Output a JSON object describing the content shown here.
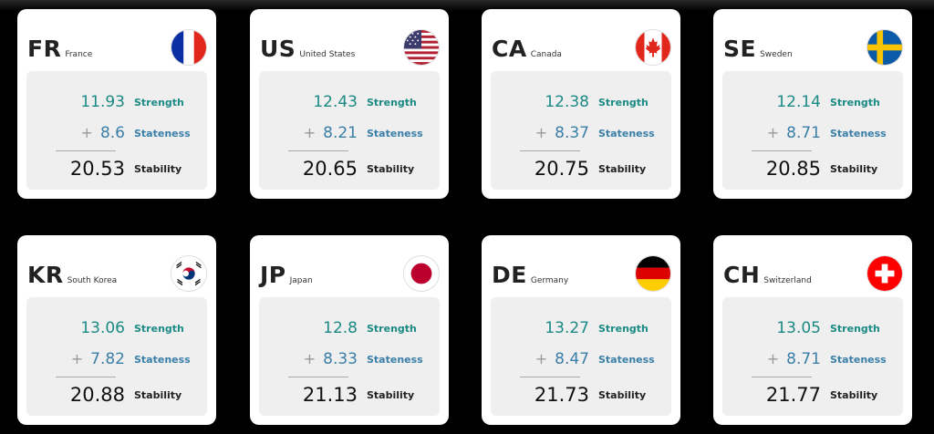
{
  "cards": [
    {
      "code": "FR",
      "country": "France",
      "flag": "flag-france-icon",
      "strength": "11.93",
      "stateness": "8.6",
      "stability": "20.53"
    },
    {
      "code": "US",
      "country": "United States",
      "flag": "flag-usa-icon",
      "strength": "12.43",
      "stateness": "8.21",
      "stability": "20.65"
    },
    {
      "code": "CA",
      "country": "Canada",
      "flag": "flag-canada-icon",
      "strength": "12.38",
      "stateness": "8.37",
      "stability": "20.75"
    },
    {
      "code": "SE",
      "country": "Sweden",
      "flag": "flag-sweden-icon",
      "strength": "12.14",
      "stateness": "8.71",
      "stability": "20.85"
    },
    {
      "code": "KR",
      "country": "South Korea",
      "flag": "flag-south-korea-icon",
      "strength": "13.06",
      "stateness": "7.82",
      "stability": "20.88"
    },
    {
      "code": "JP",
      "country": "Japan",
      "flag": "flag-japan-icon",
      "strength": "12.8",
      "stateness": "8.33",
      "stability": "21.13"
    },
    {
      "code": "DE",
      "country": "Germany",
      "flag": "flag-germany-icon",
      "strength": "13.27",
      "stateness": "8.47",
      "stability": "21.73"
    },
    {
      "code": "CH",
      "country": "Switzerland",
      "flag": "flag-switzerland-icon",
      "strength": "13.05",
      "stateness": "8.71",
      "stability": "21.77"
    }
  ],
  "labels": {
    "strength": "Strength",
    "stateness": "Stateness",
    "stability": "Stability",
    "plus": "+"
  },
  "colors": {
    "strength": "#1c8a84",
    "stateness": "#3a7fa8",
    "background": "#000000",
    "card": "#ffffff",
    "panel": "#efefef"
  }
}
